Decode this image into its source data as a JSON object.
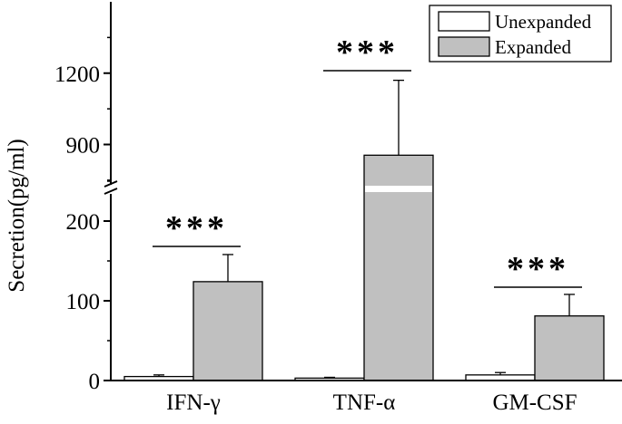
{
  "chart_data": {
    "type": "bar",
    "categories": [
      "IFN-γ",
      "TNF-α",
      "GM-CSF"
    ],
    "series": [
      {
        "name": "Unexpanded",
        "values": [
          5,
          3,
          7
        ],
        "errors": [
          2,
          1,
          3
        ],
        "color": "#ffffff"
      },
      {
        "name": "Expanded",
        "values": [
          124,
          855,
          81
        ],
        "errors": [
          34,
          315,
          27
        ],
        "color": "#c0c0c0"
      }
    ],
    "ylabel": "Secretion(pg/ml)",
    "ylim_lower": [
      0,
      250
    ],
    "ylim_upper": [
      700,
      1500
    ],
    "axis_break": [
      250,
      700
    ],
    "y_ticks_lower": [
      0,
      100,
      200
    ],
    "y_ticks_upper": [
      900,
      1200
    ],
    "y_tick_labels": [
      "0",
      "100",
      "200",
      "900",
      "1200"
    ],
    "significance": [
      "***",
      "***",
      "***"
    ],
    "legend": {
      "position": "top-right",
      "entries": [
        "Unexpanded",
        "Expanded"
      ]
    },
    "grid": false
  }
}
